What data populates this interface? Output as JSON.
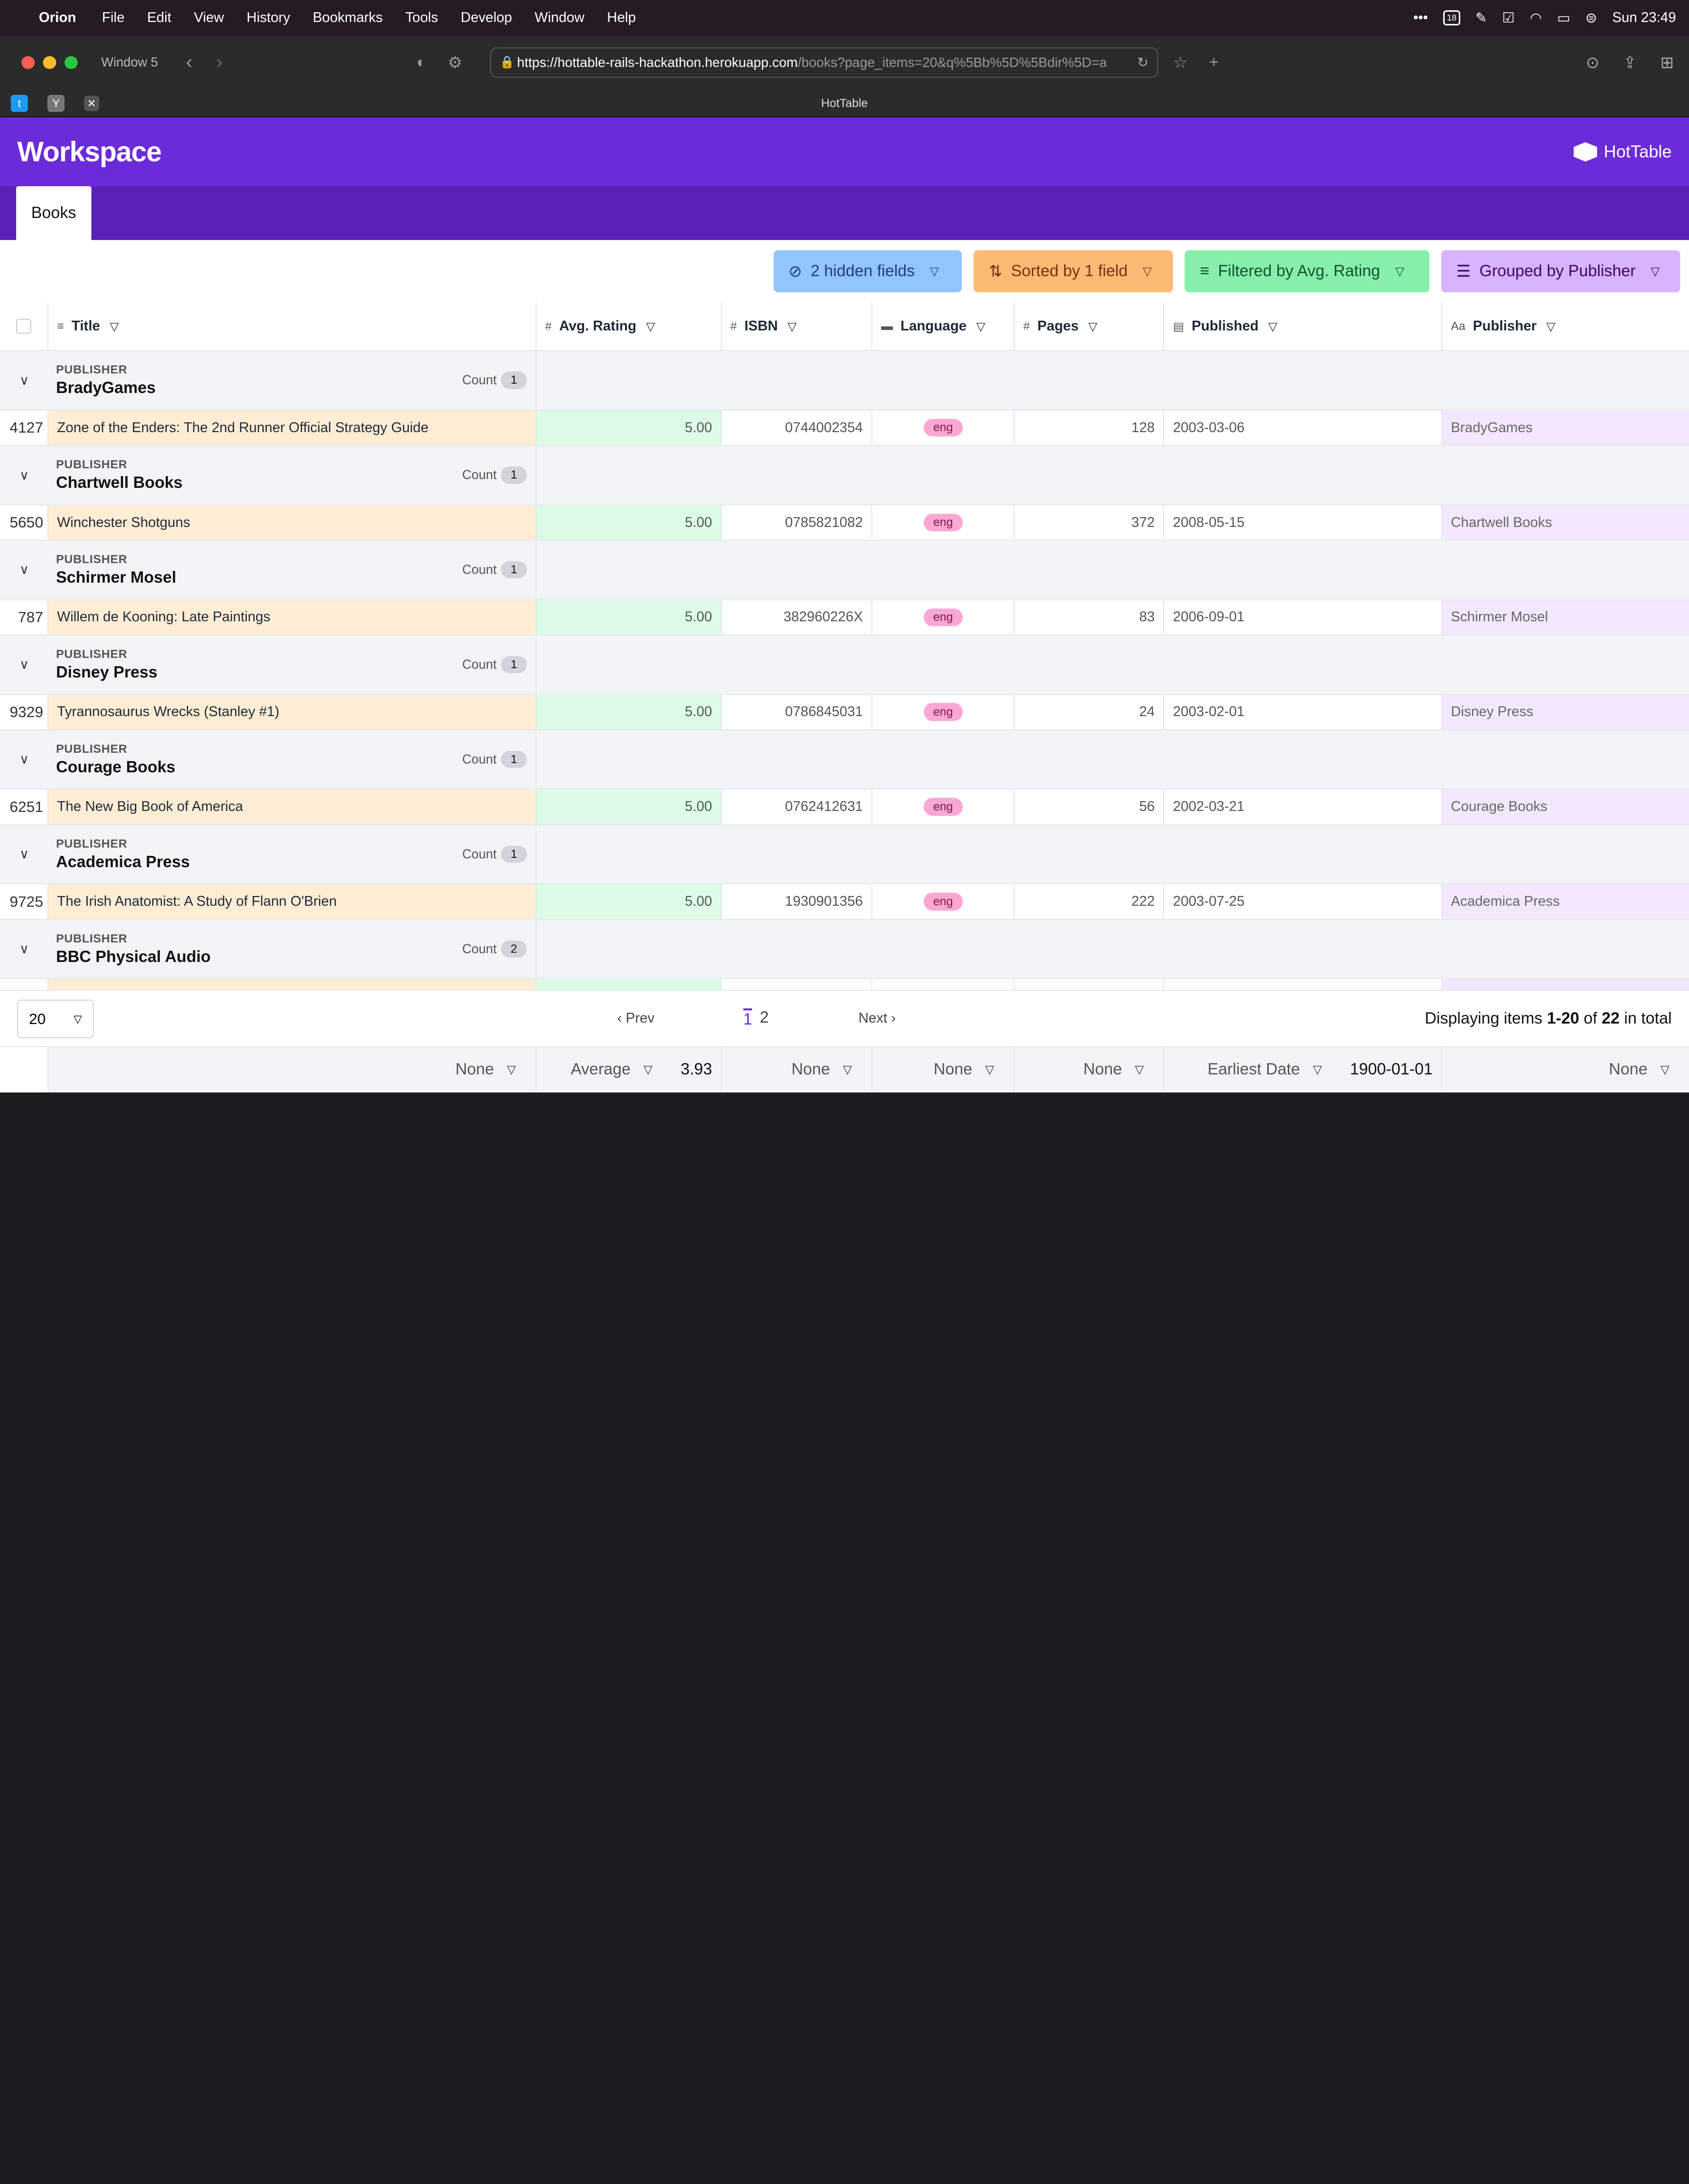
{
  "menubar": {
    "app": "Orion",
    "items": [
      "File",
      "Edit",
      "View",
      "History",
      "Bookmarks",
      "Tools",
      "Develop",
      "Window",
      "Help"
    ],
    "calendar_day": "18",
    "clock": "Sun  23:49"
  },
  "browser": {
    "window_label": "Window 5",
    "url_host": "https://hottable-rails-hackathon.herokuapp.com",
    "url_path": "/books?page_items=20&q%5Bb%5D%5Bdir%5D=a",
    "tab_title": "HotTable"
  },
  "app": {
    "title": "Workspace",
    "brand": "HotTable",
    "tab": "Books"
  },
  "filters": {
    "hidden": "2 hidden fields",
    "sorted": "Sorted by 1 field",
    "filtered": "Filtered by Avg. Rating",
    "grouped": "Grouped by Publisher"
  },
  "columns": {
    "title": "Title",
    "rating": "Avg. Rating",
    "isbn": "ISBN",
    "language": "Language",
    "pages": "Pages",
    "published": "Published",
    "publisher": "Publisher"
  },
  "group_key": "PUBLISHER",
  "count_label": "Count",
  "groups": [
    {
      "name": "BradyGames",
      "count": "1",
      "row": {
        "id": "4127",
        "title": "Zone of the Enders: The 2nd Runner Official Strategy Guide",
        "rating": "5.00",
        "isbn": "0744002354",
        "lang": "eng",
        "pages": "128",
        "published": "2003-03-06",
        "publisher": "BradyGames"
      }
    },
    {
      "name": "Chartwell Books",
      "count": "1",
      "row": {
        "id": "5650",
        "title": "Winchester Shotguns",
        "rating": "5.00",
        "isbn": "0785821082",
        "lang": "eng",
        "pages": "372",
        "published": "2008-05-15",
        "publisher": "Chartwell Books"
      }
    },
    {
      "name": "Schirmer Mosel",
      "count": "1",
      "row": {
        "id": "787",
        "title": "Willem de Kooning: Late Paintings",
        "rating": "5.00",
        "isbn": "382960226X",
        "lang": "eng",
        "pages": "83",
        "published": "2006-09-01",
        "publisher": "Schirmer Mosel"
      }
    },
    {
      "name": "Disney Press",
      "count": "1",
      "row": {
        "id": "9329",
        "title": "Tyrannosaurus Wrecks (Stanley #1)",
        "rating": "5.00",
        "isbn": "0786845031",
        "lang": "eng",
        "pages": "24",
        "published": "2003-02-01",
        "publisher": "Disney Press"
      }
    },
    {
      "name": "Courage Books",
      "count": "1",
      "row": {
        "id": "6251",
        "title": "The New Big Book of America",
        "rating": "5.00",
        "isbn": "0762412631",
        "lang": "eng",
        "pages": "56",
        "published": "2002-03-21",
        "publisher": "Courage Books"
      }
    },
    {
      "name": "Academica Press",
      "count": "1",
      "row": {
        "id": "9725",
        "title": "The Irish Anatomist: A Study of Flann O'Brien",
        "rating": "5.00",
        "isbn": "1930901356",
        "lang": "eng",
        "pages": "222",
        "published": "2003-07-25",
        "publisher": "Academica Press"
      }
    },
    {
      "name": "BBC Physical Audio",
      "count": "2",
      "row": null
    }
  ],
  "pager": {
    "per_page": "20",
    "prev": "‹ Prev",
    "page1": "1",
    "page2": "2",
    "next": "Next ›",
    "display_prefix": "Displaying items ",
    "display_range": "1-20",
    "display_of": " of ",
    "display_total": "22",
    "display_suffix": " in total"
  },
  "summary": {
    "title": "None",
    "rating_fn": "Average",
    "rating_val": "3.93",
    "isbn": "None",
    "language": "None",
    "pages": "None",
    "published_fn": "Earliest Date",
    "published_val": "1900-01-01",
    "publisher": "None"
  }
}
